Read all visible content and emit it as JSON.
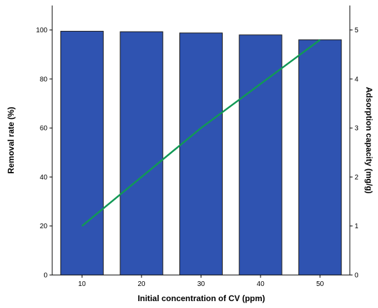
{
  "chart_data": {
    "type": "bar",
    "categories": [
      "10",
      "20",
      "30",
      "40",
      "50"
    ],
    "series": [
      {
        "type": "bar",
        "axis": "left",
        "values": [
          99.5,
          99.3,
          98.8,
          98.0,
          96.0
        ],
        "color": "#2f53b1"
      },
      {
        "type": "line",
        "axis": "right",
        "values": [
          1.0,
          2.0,
          3.0,
          3.9,
          4.8
        ],
        "color": "#119955"
      }
    ],
    "xlabel": "Initial concentration of CV (ppm)",
    "ylabel": "Removal rate (%)",
    "y2label": "Adsorption capacity (mg/g)",
    "ylim": [
      0,
      110
    ],
    "y2lim": [
      0,
      5.5
    ],
    "yticks": [
      "0",
      "20",
      "40",
      "60",
      "80",
      "100"
    ],
    "y2ticks": [
      "0",
      "1",
      "2",
      "3",
      "4",
      "5"
    ],
    "grid": false,
    "legend": "none"
  }
}
